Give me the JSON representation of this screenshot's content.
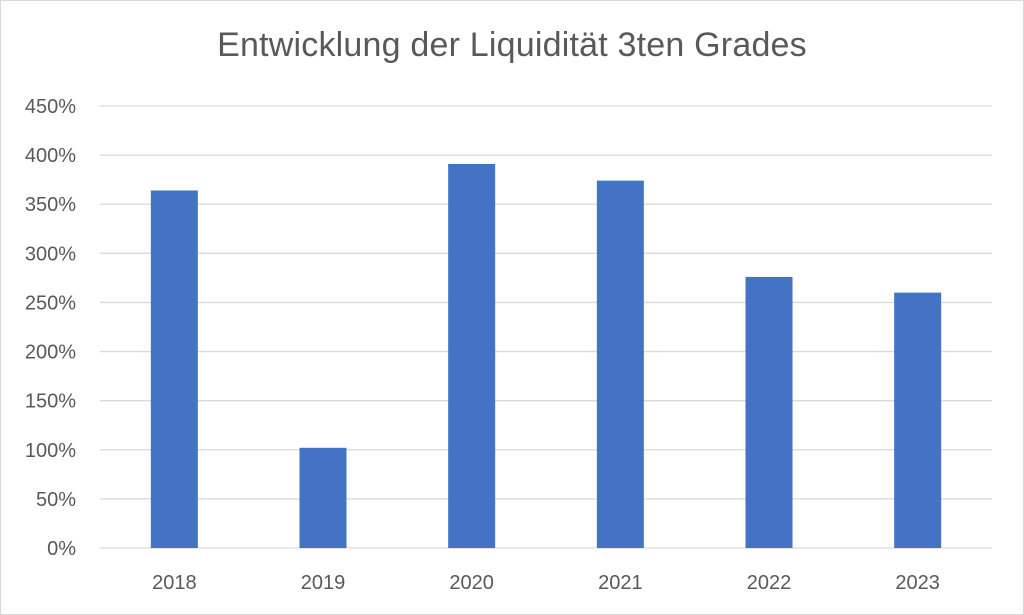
{
  "chart_data": {
    "type": "bar",
    "title": "Entwicklung der Liquidität 3ten Grades",
    "categories": [
      "2018",
      "2019",
      "2020",
      "2021",
      "2022",
      "2023"
    ],
    "values": [
      364,
      102,
      391,
      374,
      276,
      260
    ],
    "unit": "%",
    "ylim": [
      0,
      450
    ],
    "yticks": [
      0,
      50,
      100,
      150,
      200,
      250,
      300,
      350,
      400,
      450
    ],
    "ytick_labels": [
      "0%",
      "50%",
      "100%",
      "150%",
      "200%",
      "250%",
      "300%",
      "350%",
      "400%",
      "450%"
    ],
    "grid": true,
    "legend": "none",
    "bar_color": "#4472c4",
    "grid_color": "#d9d9d9"
  }
}
